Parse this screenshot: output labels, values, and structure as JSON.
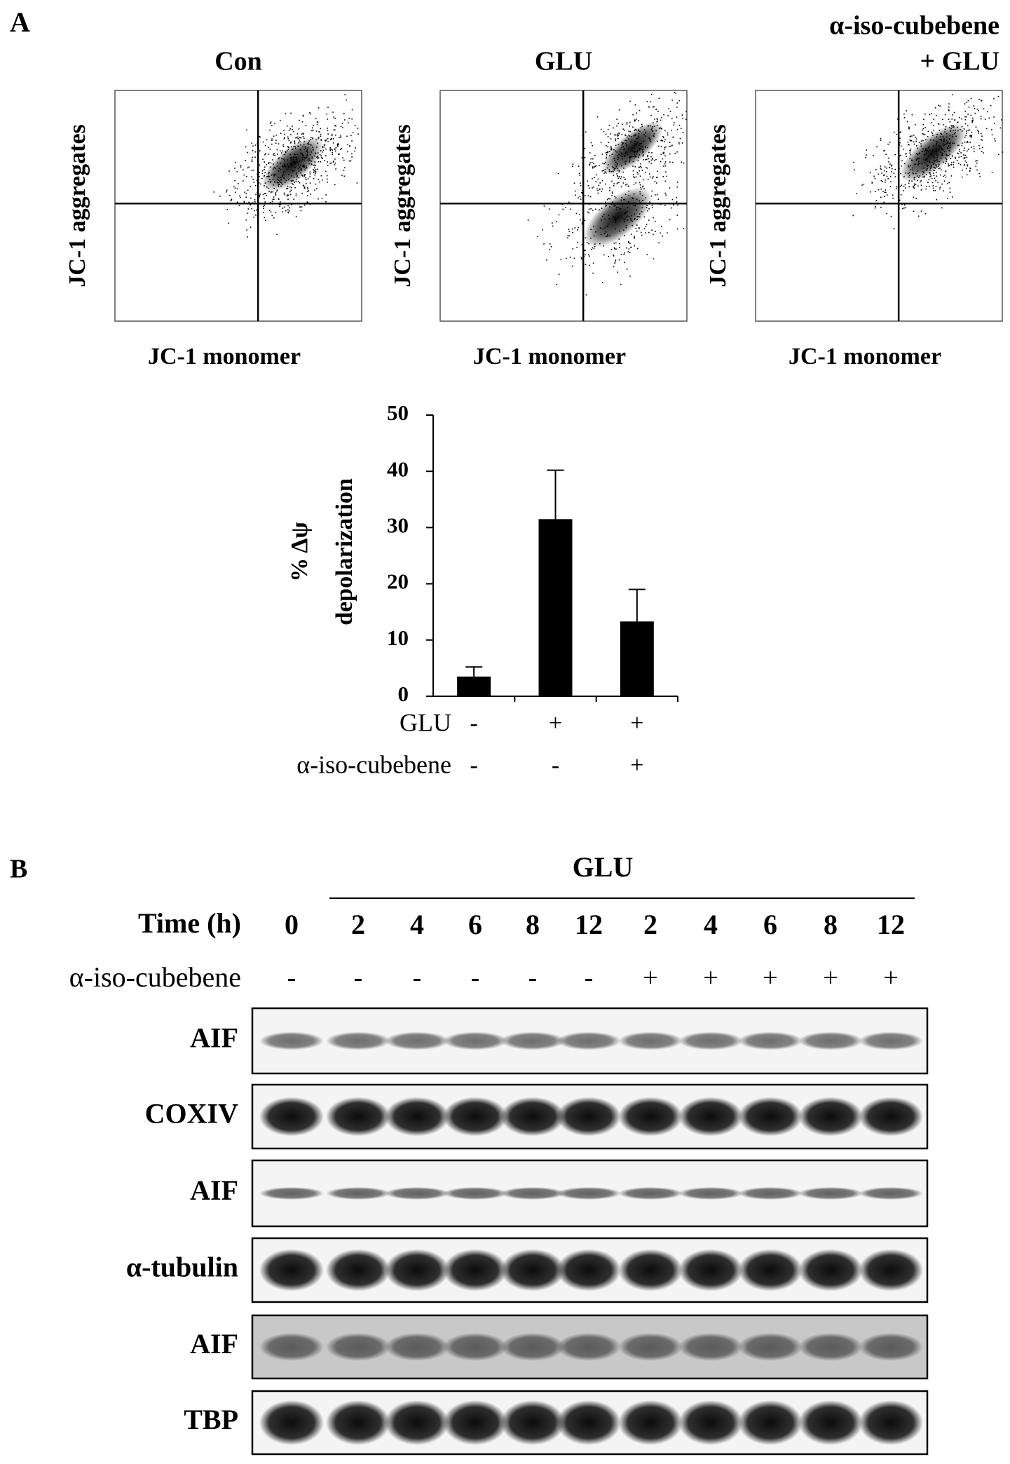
{
  "panel_a": {
    "label": "A",
    "flow_plots": [
      {
        "title": [
          "Con"
        ],
        "y_label": "JC-1 aggregates",
        "x_label": "JC-1 monomer"
      },
      {
        "title": [
          "GLU"
        ],
        "y_label": "JC-1 aggregates",
        "x_label": "JC-1 monomer"
      },
      {
        "title": [
          "α-iso-cubebene",
          "+ GLU"
        ],
        "y_label": "JC-1 aggregates",
        "x_label": "JC-1 monomer"
      }
    ]
  },
  "chart_data": {
    "type": "bar",
    "ylabel": [
      "% Δψ",
      "depolarization"
    ],
    "categories": [
      null,
      null,
      null
    ],
    "values": [
      3.5,
      31.5,
      13.3
    ],
    "errors": [
      1.7,
      8.7,
      5.7
    ],
    "color": "#000000",
    "ylim": [
      0,
      50
    ],
    "yticks": [
      0,
      10,
      20,
      30,
      40,
      50
    ],
    "condition_rows": [
      {
        "name": "GLU",
        "values": [
          "-",
          "+",
          "+"
        ]
      },
      {
        "name": "α-iso-cubebene",
        "values": [
          "-",
          "-",
          "+"
        ]
      }
    ]
  },
  "panel_b": {
    "label": "B",
    "group_label": "GLU",
    "time_label": "Time (h)",
    "times": [
      0,
      2,
      4,
      6,
      8,
      12,
      2,
      4,
      6,
      8,
      12
    ],
    "treatment_label": "α-iso-cubebene",
    "treatment": [
      "-",
      "-",
      "-",
      "-",
      "-",
      "-",
      "+",
      "+",
      "+",
      "+",
      "+"
    ],
    "blot_rows": [
      "AIF",
      "COXIV",
      "AIF",
      "α-tubulin",
      "AIF",
      "TBP"
    ]
  }
}
